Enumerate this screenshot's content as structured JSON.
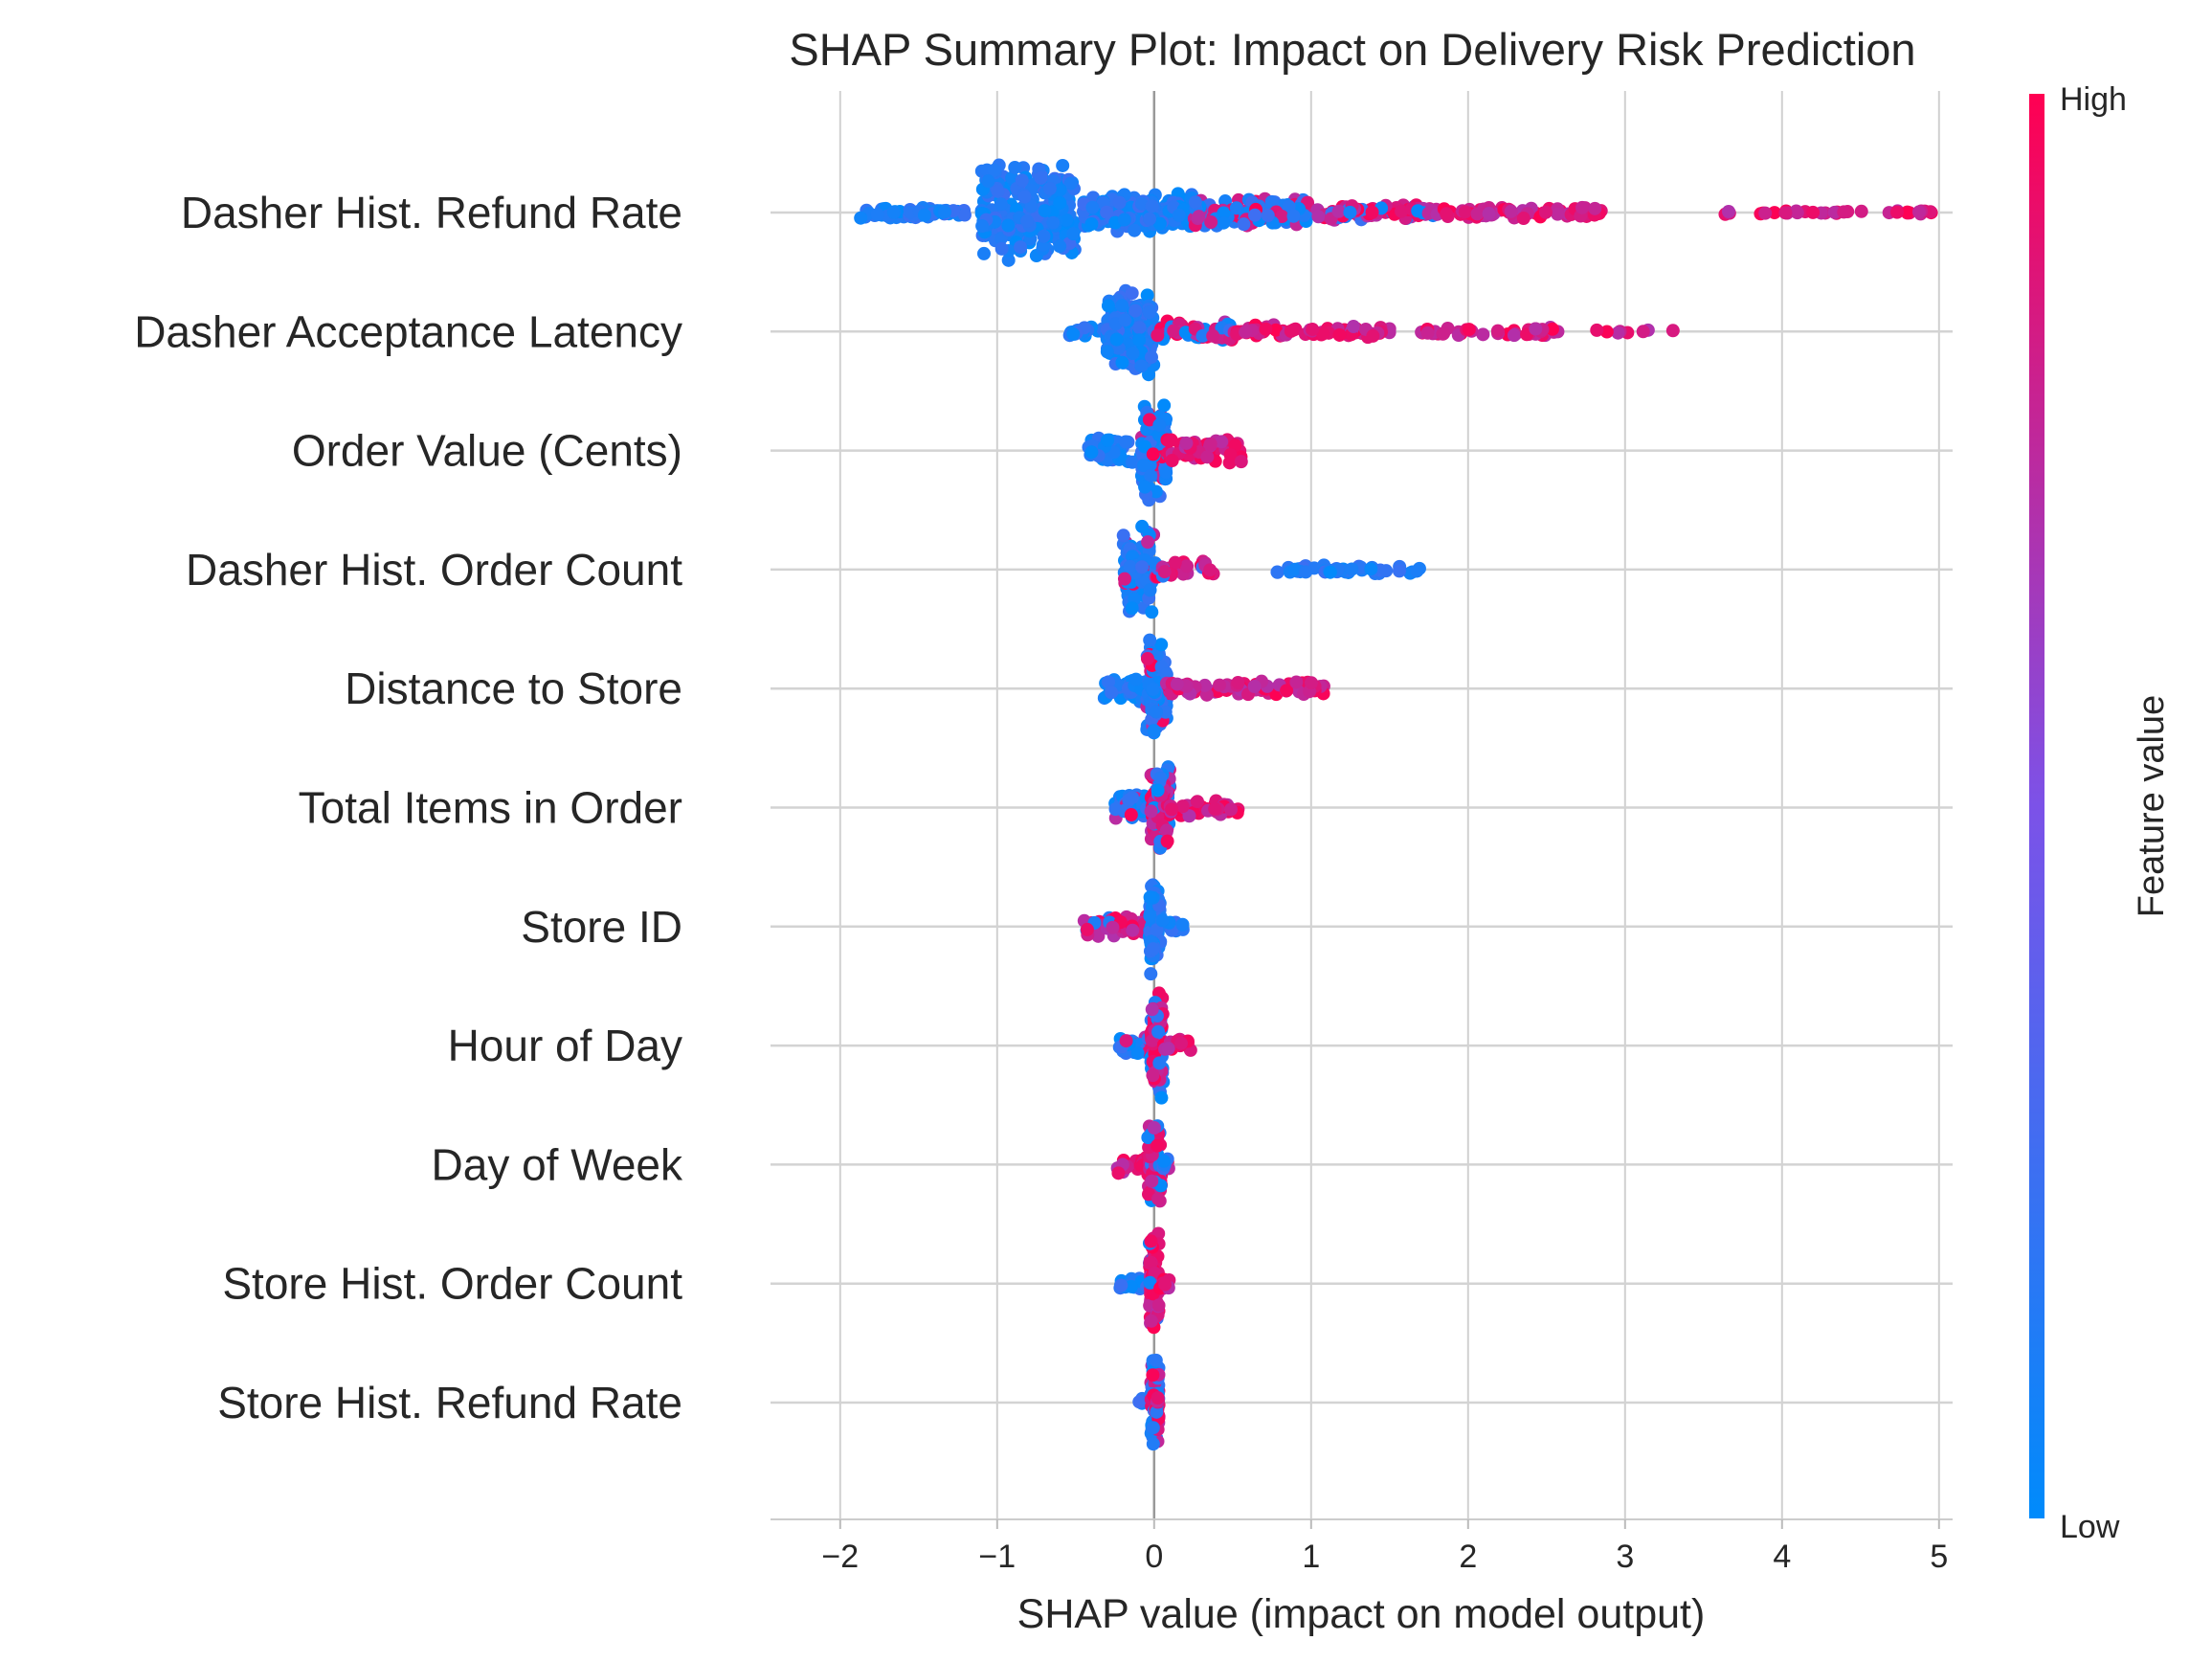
{
  "chart_data": {
    "type": "scatter",
    "subtype": "shap-beeswarm",
    "title": "SHAP Summary Plot: Impact on Delivery Risk Prediction",
    "xlabel": "SHAP value (impact on model output)",
    "xlim": [
      -2.2,
      5.3
    ],
    "xticks": [
      -2,
      -1,
      0,
      1,
      2,
      3,
      4,
      5
    ],
    "xtick_labels": [
      "−2",
      "−1",
      "0",
      "1",
      "2",
      "3",
      "4",
      "5"
    ],
    "grid": true,
    "colorbar": {
      "label": "Feature value",
      "high_label": "High",
      "low_label": "Low",
      "low_color": "#008bfb",
      "high_color": "#ff0052",
      "mid_color": "#7c52e8"
    },
    "features": [
      {
        "name": "Dasher Hist. Refund Rate",
        "clusters": [
          {
            "min": -1.9,
            "max": -1.2,
            "width": 0.12,
            "cold": 1.0,
            "n": 60
          },
          {
            "min": -1.1,
            "max": -0.5,
            "width": 1.0,
            "cold": 1.0,
            "n": 220
          },
          {
            "min": -0.45,
            "max": 0.25,
            "width": 0.4,
            "cold": 0.97,
            "n": 160
          },
          {
            "min": 0.25,
            "max": 1.0,
            "width": 0.28,
            "cold": 0.55,
            "n": 120
          },
          {
            "min": 1.0,
            "max": 1.8,
            "width": 0.18,
            "cold": 0.22,
            "n": 80
          },
          {
            "min": 1.8,
            "max": 2.85,
            "width": 0.12,
            "cold": 0.0,
            "n": 70
          },
          {
            "min": 3.6,
            "max": 4.98,
            "width": 0.04,
            "cold": 0.0,
            "n": 35
          }
        ]
      },
      {
        "name": "Dasher Acceptance Latency",
        "clusters": [
          {
            "min": -0.55,
            "max": -0.3,
            "width": 0.12,
            "cold": 1.0,
            "n": 20
          },
          {
            "min": -0.3,
            "max": 0.0,
            "width": 0.85,
            "cold": 1.0,
            "n": 150
          },
          {
            "min": 0.0,
            "max": 0.5,
            "width": 0.22,
            "cold": 0.35,
            "n": 60
          },
          {
            "min": 0.5,
            "max": 1.5,
            "width": 0.14,
            "cold": 0.0,
            "n": 70
          },
          {
            "min": 1.7,
            "max": 2.6,
            "width": 0.1,
            "cold": 0.0,
            "n": 40
          },
          {
            "min": 2.75,
            "max": 3.33,
            "width": 0.04,
            "cold": 0.0,
            "n": 8
          }
        ]
      },
      {
        "name": "Order Value (Cents)",
        "clusters": [
          {
            "min": -0.42,
            "max": -0.08,
            "width": 0.3,
            "cold": 1.0,
            "n": 45
          },
          {
            "min": -0.08,
            "max": 0.08,
            "width": 1.0,
            "cold": 0.85,
            "n": 110
          },
          {
            "min": 0.08,
            "max": 0.56,
            "width": 0.28,
            "cold": 0.1,
            "n": 55
          }
        ]
      },
      {
        "name": "Dasher Hist. Order Count",
        "clusters": [
          {
            "min": -0.2,
            "max": 0.0,
            "width": 0.9,
            "cold": 0.8,
            "n": 100
          },
          {
            "min": 0.0,
            "max": 0.38,
            "width": 0.22,
            "cold": 0.15,
            "n": 35
          },
          {
            "min": 0.72,
            "max": 1.75,
            "width": 0.1,
            "cold": 1.0,
            "n": 45
          }
        ]
      },
      {
        "name": "Distance to Store",
        "clusters": [
          {
            "min": -0.32,
            "max": -0.05,
            "width": 0.25,
            "cold": 1.0,
            "n": 40
          },
          {
            "min": -0.05,
            "max": 0.08,
            "width": 1.0,
            "cold": 0.85,
            "n": 100
          },
          {
            "min": 0.08,
            "max": 1.1,
            "width": 0.14,
            "cold": 0.0,
            "n": 80
          }
        ]
      },
      {
        "name": "Total Items in Order",
        "clusters": [
          {
            "min": -0.25,
            "max": -0.02,
            "width": 0.3,
            "cold": 0.85,
            "n": 45
          },
          {
            "min": -0.02,
            "max": 0.1,
            "width": 1.0,
            "cold": 0.35,
            "n": 100
          },
          {
            "min": 0.1,
            "max": 0.57,
            "width": 0.2,
            "cold": 0.0,
            "n": 40
          }
        ]
      },
      {
        "name": "Store ID",
        "clusters": [
          {
            "min": -0.47,
            "max": -0.03,
            "width": 0.2,
            "cold": 0.15,
            "n": 45
          },
          {
            "min": -0.03,
            "max": 0.04,
            "width": 1.0,
            "cold": 1.0,
            "n": 90
          },
          {
            "min": 0.04,
            "max": 0.2,
            "width": 0.14,
            "cold": 1.0,
            "n": 14
          }
        ]
      },
      {
        "name": "Hour of Day",
        "clusters": [
          {
            "min": -0.22,
            "max": -0.02,
            "width": 0.22,
            "cold": 0.75,
            "n": 30
          },
          {
            "min": -0.02,
            "max": 0.06,
            "width": 1.0,
            "cold": 0.4,
            "n": 100
          },
          {
            "min": 0.06,
            "max": 0.24,
            "width": 0.14,
            "cold": 0.0,
            "n": 14
          }
        ]
      },
      {
        "name": "Day of Week",
        "clusters": [
          {
            "min": -0.24,
            "max": -0.04,
            "width": 0.18,
            "cold": 0.0,
            "n": 26
          },
          {
            "min": -0.04,
            "max": 0.05,
            "width": 1.0,
            "cold": 0.35,
            "n": 100
          },
          {
            "min": 0.05,
            "max": 0.1,
            "width": 0.12,
            "cold": 0.6,
            "n": 8
          }
        ]
      },
      {
        "name": "Store Hist. Order Count",
        "clusters": [
          {
            "min": -0.22,
            "max": -0.03,
            "width": 0.16,
            "cold": 1.0,
            "n": 24
          },
          {
            "min": -0.03,
            "max": 0.03,
            "width": 1.0,
            "cold": 0.1,
            "n": 100
          },
          {
            "min": 0.03,
            "max": 0.1,
            "width": 0.14,
            "cold": 0.0,
            "n": 10
          }
        ]
      },
      {
        "name": "Store Hist. Refund Rate",
        "clusters": [
          {
            "min": -0.1,
            "max": -0.02,
            "width": 0.1,
            "cold": 1.0,
            "n": 6
          },
          {
            "min": -0.02,
            "max": 0.03,
            "width": 1.0,
            "cold": 0.55,
            "n": 80
          },
          {
            "min": 0.0,
            "max": 0.03,
            "width": 0.1,
            "cold": 0.0,
            "n": 4
          }
        ]
      }
    ]
  }
}
